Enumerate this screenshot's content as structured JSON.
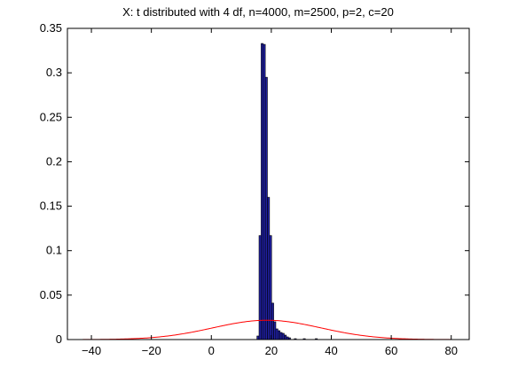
{
  "chart_data": {
    "type": "bar",
    "title": "X: t distributed with 4 df, n=4000, m=2500, p=2, c=20",
    "xlabel": "",
    "ylabel": "",
    "xlim": [
      -48,
      86
    ],
    "ylim": [
      0,
      0.35
    ],
    "xticks": [
      -40,
      -20,
      0,
      20,
      40,
      60,
      80
    ],
    "yticks": [
      0,
      0.05,
      0.1,
      0.15,
      0.2,
      0.25,
      0.3,
      0.35
    ],
    "xtick_labels": [
      "−40",
      "−20",
      "0",
      "20",
      "40",
      "60",
      "80"
    ],
    "ytick_labels": [
      "0",
      "0.05",
      "0.1",
      "0.15",
      "0.2",
      "0.25",
      "0.3",
      "0.35"
    ],
    "grid": false,
    "legend": "none",
    "bar_width": 0.7,
    "bars": {
      "x": [
        15.55,
        16.25,
        16.95,
        17.65,
        18.35,
        19.05,
        19.75,
        20.45,
        21.15,
        21.85,
        22.55,
        23.25,
        23.95,
        24.65,
        25.35,
        26.05,
        28.0,
        31.0,
        35.0
      ],
      "values": [
        0.004,
        0.117,
        0.333,
        0.332,
        0.295,
        0.16,
        0.117,
        0.041,
        0.02,
        0.012,
        0.01,
        0.008,
        0.007,
        0.005,
        0.003,
        0.002,
        0.001,
        0.001,
        0.001
      ]
    },
    "curve": {
      "name": "",
      "mean": 18.5,
      "sd": 18.0,
      "peak": 0.0217,
      "x_range": [
        -48,
        86
      ]
    },
    "colors": {
      "bar_fill": "#1f1fa0",
      "bar_edge": "#000000",
      "curve": "#ff0000",
      "axes": "#000000"
    }
  }
}
